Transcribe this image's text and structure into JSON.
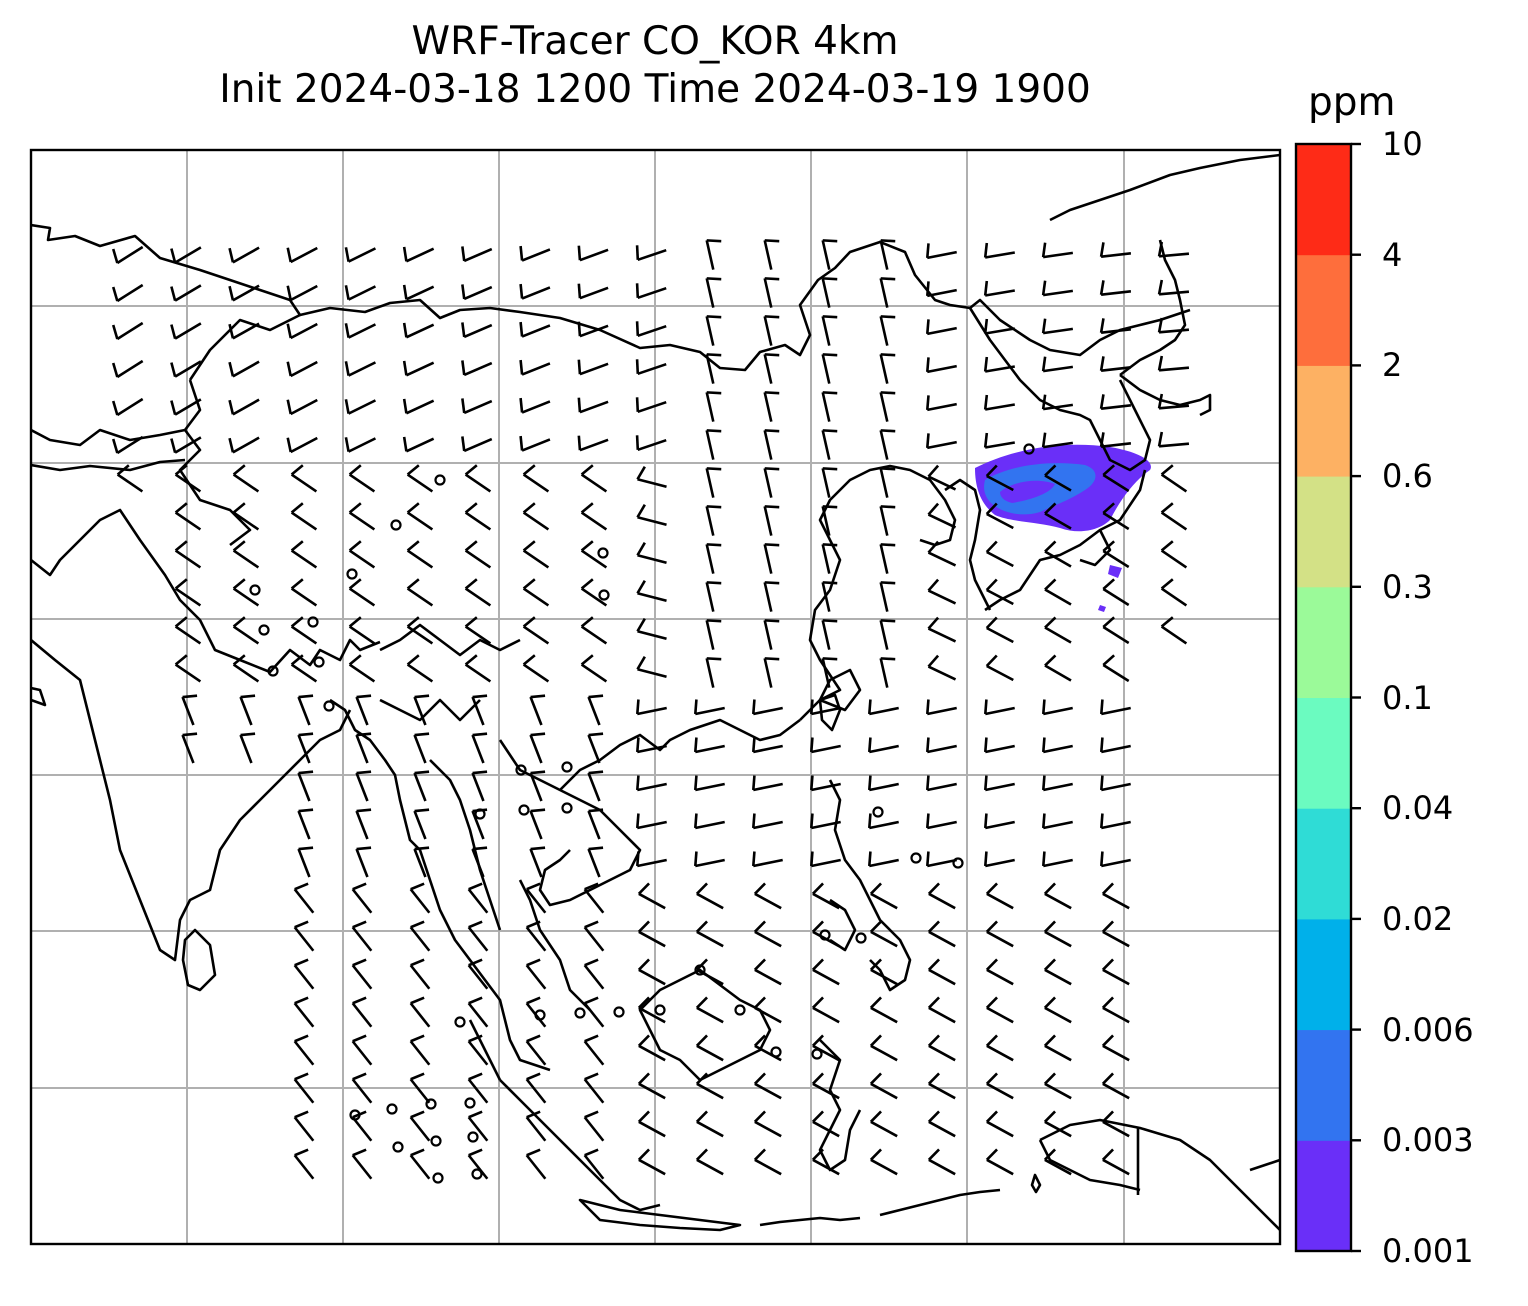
{
  "title": {
    "line1": "WRF-Tracer CO_KOR 4km",
    "line2": "Init 2024-03-18 1200 Time 2024-03-19 1900"
  },
  "colorbar": {
    "unit": "ppm",
    "levels": [
      "0.001",
      "0.003",
      "0.006",
      "0.02",
      "0.04",
      "0.1",
      "0.3",
      "0.6",
      "2",
      "4",
      "10"
    ],
    "colors": [
      "#6a2ff8",
      "#3274f0",
      "#00b0ea",
      "#2fdcd6",
      "#6bfbc0",
      "#9bfa99",
      "#d3e186",
      "#fdb163",
      "#fe6e3c",
      "#fe2b17"
    ]
  },
  "map": {
    "plume_fill": "#6a2ff8",
    "plume_core": "#3274f0",
    "grid_color": "#b0b0b0",
    "coast_color": "#000000"
  }
}
